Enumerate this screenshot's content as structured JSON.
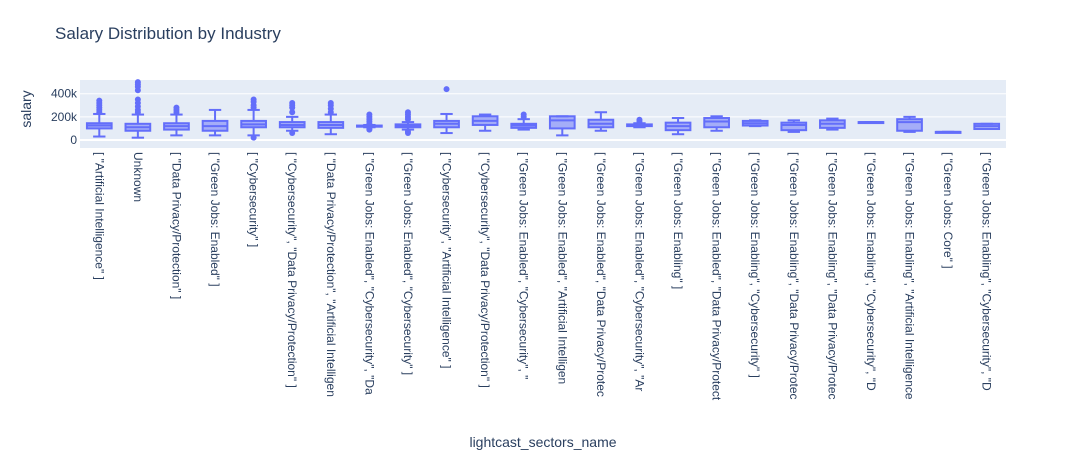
{
  "chart_data": {
    "type": "box",
    "title": "Salary Distribution by Industry",
    "xlabel": "lightcast_sectors_name",
    "ylabel": "salary",
    "ylim": [
      0,
      510000
    ],
    "yticks": [
      0,
      200000,
      400000
    ],
    "ytick_labels": [
      "0",
      "200k",
      "400k"
    ],
    "grid": true,
    "legend": "none",
    "colors": {
      "box": "#636efa",
      "plot_bg": "#e5ecf6",
      "text": "#2a3f5f",
      "grid": "#ffffff"
    },
    "categories": [
      "[ \"Artificial Intelligence\" ]",
      "Unknown",
      "[ \"Data Privacy/Protection\" ]",
      "[ \"Green Jobs: Enabled\" ]",
      "[ \"Cybersecurity\" ]",
      "[ \"Cybersecurity\", \"Data Privacy/Protection\" ]",
      "[ \"Data Privacy/Protection\", \"Artificial Intelligen",
      "[ \"Green Jobs: Enabled\", \"Cybersecurity\", \"Da",
      "[ \"Green Jobs: Enabled\", \"Cybersecurity\" ]",
      "[ \"Cybersecurity\", \"Artificial Intelligence\" ]",
      "[ \"Cybersecurity\", \"Data Privacy/Protection\" ]",
      "[ \"Green Jobs: Enabled\", \"Cybersecurity\", \"",
      "[ \"Green Jobs: Enabled\", \"Artificial Intelligen",
      "[ \"Green Jobs: Enabled\", \"Data Privacy/Protec",
      "[ \"Green Jobs: Enabled\", \"Cybersecurity\", \"Ar",
      "[ \"Green Jobs: Enabling\" ]",
      "[ \"Green Jobs: Enabled\", \"Data Privacy/Protect",
      "[ \"Green Jobs: Enabling\", \"Cybersecurity\" ]",
      "[ \"Green Jobs: Enabling\", \"Data Privacy/Protec",
      "[ \"Green Jobs: Enabling\", \"Data Privacy/Protec",
      "[ \"Green Jobs: Enabling\", \"Cybersecurity\", \"D",
      "[ \"Green Jobs: Enabling\", \"Artificial Intelligence",
      "[ \"Green Jobs: Core\" ]",
      "[ \"Green Jobs: Enabling\", \"Cybersecurity\", \"D"
    ],
    "boxes": [
      {
        "lower": 30000,
        "q1": 100000,
        "median": 125000,
        "q3": 145000,
        "upper": 225000,
        "outliers": [
          240000,
          260000,
          280000,
          300000,
          320000,
          340000
        ]
      },
      {
        "lower": 20000,
        "q1": 80000,
        "median": 110000,
        "q3": 140000,
        "upper": 220000,
        "outliers": [
          240000,
          260000,
          290000,
          320000,
          350000,
          430000,
          460000,
          480000,
          500000
        ]
      },
      {
        "lower": 40000,
        "q1": 90000,
        "median": 120000,
        "q3": 145000,
        "upper": 220000,
        "outliers": [
          240000,
          260000,
          280000
        ]
      },
      {
        "lower": 40000,
        "q1": 80000,
        "median": 120000,
        "q3": 165000,
        "upper": 260000,
        "outliers": []
      },
      {
        "lower": 40000,
        "q1": 110000,
        "median": 135000,
        "q3": 165000,
        "upper": 260000,
        "outliers": [
          20000,
          280000,
          300000,
          330000,
          350000
        ]
      },
      {
        "lower": 80000,
        "q1": 110000,
        "median": 130000,
        "q3": 155000,
        "upper": 200000,
        "outliers": [
          60000,
          240000,
          280000,
          300000,
          320000
        ]
      },
      {
        "lower": 50000,
        "q1": 105000,
        "median": 130000,
        "q3": 155000,
        "upper": 220000,
        "outliers": [
          240000,
          270000,
          300000,
          320000
        ]
      },
      {
        "lower": 110000,
        "q1": 115000,
        "median": 120000,
        "q3": 125000,
        "upper": 130000,
        "outliers": [
          90000,
          100000,
          140000,
          160000,
          180000,
          200000,
          220000
        ]
      },
      {
        "lower": 90000,
        "q1": 110000,
        "median": 125000,
        "q3": 135000,
        "upper": 155000,
        "outliers": [
          60000,
          75000,
          180000,
          200000,
          220000,
          240000
        ]
      },
      {
        "lower": 60000,
        "q1": 110000,
        "median": 140000,
        "q3": 165000,
        "upper": 225000,
        "outliers": [
          440000
        ]
      },
      {
        "lower": 80000,
        "q1": 130000,
        "median": 165000,
        "q3": 205000,
        "upper": 220000,
        "outliers": []
      },
      {
        "lower": 90000,
        "q1": 105000,
        "median": 125000,
        "q3": 140000,
        "upper": 180000,
        "outliers": [
          200000,
          220000
        ]
      },
      {
        "lower": 40000,
        "q1": 100000,
        "median": 170000,
        "q3": 205000,
        "upper": 205000,
        "outliers": []
      },
      {
        "lower": 80000,
        "q1": 110000,
        "median": 140000,
        "q3": 175000,
        "upper": 240000,
        "outliers": []
      },
      {
        "lower": 110000,
        "q1": 120000,
        "median": 125000,
        "q3": 135000,
        "upper": 145000,
        "outliers": [
          160000,
          175000
        ]
      },
      {
        "lower": 50000,
        "q1": 85000,
        "median": 120000,
        "q3": 150000,
        "upper": 190000,
        "outliers": []
      },
      {
        "lower": 80000,
        "q1": 110000,
        "median": 160000,
        "q3": 190000,
        "upper": 205000,
        "outliers": []
      },
      {
        "lower": 120000,
        "q1": 125000,
        "median": 145000,
        "q3": 165000,
        "upper": 170000,
        "outliers": []
      },
      {
        "lower": 70000,
        "q1": 85000,
        "median": 130000,
        "q3": 150000,
        "upper": 170000,
        "outliers": []
      },
      {
        "lower": 90000,
        "q1": 105000,
        "median": 140000,
        "q3": 170000,
        "upper": 185000,
        "outliers": []
      },
      {
        "lower": 155000,
        "q1": 155000,
        "median": 155000,
        "q3": 155000,
        "upper": 155000,
        "outliers": []
      },
      {
        "lower": 70000,
        "q1": 80000,
        "median": 155000,
        "q3": 180000,
        "upper": 200000,
        "outliers": []
      },
      {
        "lower": 70000,
        "q1": 70000,
        "median": 70000,
        "q3": 70000,
        "upper": 70000,
        "outliers": []
      },
      {
        "lower": 95000,
        "q1": 95000,
        "median": 120000,
        "q3": 140000,
        "upper": 140000,
        "outliers": []
      }
    ]
  }
}
